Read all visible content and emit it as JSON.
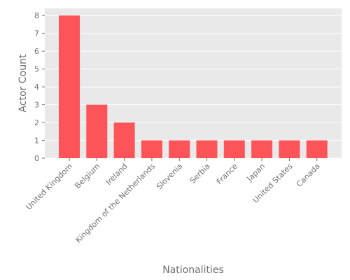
{
  "chart_data": {
    "type": "bar",
    "title": "",
    "xlabel": "Nationalities",
    "ylabel": "Actor Count",
    "categories": [
      "United Kingdom",
      "Belgium",
      "Ireland",
      "Kingdom of the Netherlands",
      "Slovenia",
      "Serbia",
      "France",
      "Japan",
      "United States",
      "Canada"
    ],
    "values": [
      8,
      3,
      2,
      1,
      1,
      1,
      1,
      1,
      1,
      1
    ],
    "ylim": [
      0,
      8.4
    ],
    "yticks": [
      0,
      1,
      2,
      3,
      4,
      5,
      6,
      7,
      8
    ],
    "grid": true,
    "legend": "none",
    "colors": {
      "bar": "#fc5458",
      "plot_background": "#e9e9e9",
      "grid": "#ffffff",
      "text": "#6e6e6e"
    }
  }
}
